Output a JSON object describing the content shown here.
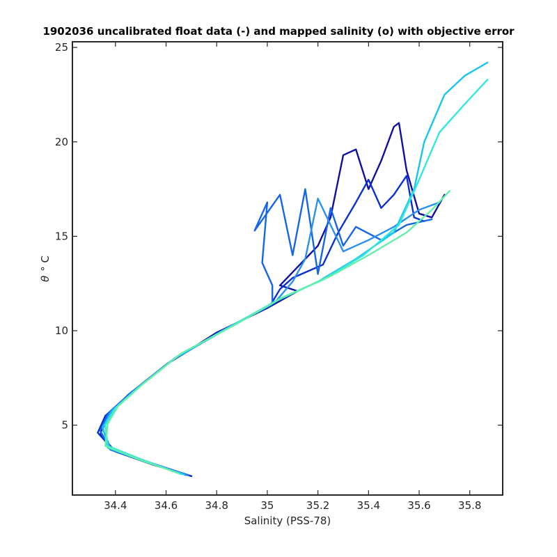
{
  "chart_data": {
    "type": "line",
    "title": "1902036 uncalibrated float data (-) and mapped salinity (o) with objective error",
    "xlabel": "Salinity (PSS-78)",
    "ylabel_theta": "θ",
    "ylabel_unit": "° C",
    "xlim": [
      34.23,
      35.93
    ],
    "ylim": [
      1.3,
      25.3
    ],
    "x_ticks": [
      {
        "value": 34.4,
        "label": "34.4"
      },
      {
        "value": 34.6,
        "label": "34.6"
      },
      {
        "value": 34.8,
        "label": "34.8"
      },
      {
        "value": 35.0,
        "label": "35"
      },
      {
        "value": 35.2,
        "label": "35.2"
      },
      {
        "value": 35.4,
        "label": "35.4"
      },
      {
        "value": 35.6,
        "label": "35.6"
      },
      {
        "value": 35.8,
        "label": "35.8"
      }
    ],
    "y_ticks": [
      {
        "value": 5,
        "label": "5"
      },
      {
        "value": 10,
        "label": "10"
      },
      {
        "value": 15,
        "label": "15"
      },
      {
        "value": 20,
        "label": "20"
      },
      {
        "value": 25,
        "label": "25"
      }
    ],
    "grid": false,
    "legend": "none",
    "series": [
      {
        "color": "#1010a0",
        "points": [
          [
            34.7,
            2.3
          ],
          [
            34.55,
            2.9
          ],
          [
            34.4,
            3.6
          ],
          [
            34.34,
            4.5
          ],
          [
            34.36,
            5.4
          ],
          [
            34.45,
            6.6
          ],
          [
            34.6,
            8.2
          ],
          [
            34.8,
            9.9
          ],
          [
            35.0,
            11.2
          ],
          [
            35.12,
            12.1
          ],
          [
            35.05,
            12.4
          ],
          [
            35.1,
            13.1
          ],
          [
            35.2,
            14.5
          ],
          [
            35.25,
            16.0
          ],
          [
            35.3,
            19.3
          ],
          [
            35.35,
            19.6
          ],
          [
            35.4,
            17.5
          ],
          [
            35.45,
            19.0
          ],
          [
            35.5,
            20.8
          ],
          [
            35.52,
            21.0
          ],
          [
            35.55,
            18.5
          ],
          [
            35.6,
            16.2
          ],
          [
            35.65,
            16.0
          ],
          [
            35.7,
            17.2
          ]
        ]
      },
      {
        "color": "#0b2fd0",
        "points": [
          [
            34.7,
            2.3
          ],
          [
            34.54,
            3.0
          ],
          [
            34.39,
            3.7
          ],
          [
            34.33,
            4.6
          ],
          [
            34.36,
            5.5
          ],
          [
            34.46,
            6.7
          ],
          [
            34.61,
            8.3
          ],
          [
            34.82,
            10.0
          ],
          [
            35.01,
            11.3
          ],
          [
            35.05,
            12.2
          ],
          [
            35.1,
            12.8
          ],
          [
            35.22,
            13.5
          ],
          [
            35.28,
            15.2
          ],
          [
            35.35,
            16.8
          ],
          [
            35.4,
            18.0
          ],
          [
            35.45,
            16.5
          ],
          [
            35.5,
            17.2
          ],
          [
            35.55,
            18.2
          ],
          [
            35.58,
            16.0
          ],
          [
            35.62,
            15.8
          ]
        ]
      },
      {
        "color": "#1565e8",
        "points": [
          [
            34.69,
            2.35
          ],
          [
            34.53,
            3.0
          ],
          [
            34.38,
            3.7
          ],
          [
            34.34,
            4.7
          ],
          [
            34.37,
            5.6
          ],
          [
            34.47,
            6.8
          ],
          [
            34.62,
            8.4
          ],
          [
            34.83,
            10.05
          ],
          [
            35.02,
            11.4
          ],
          [
            35.02,
            12.4
          ],
          [
            34.98,
            13.6
          ],
          [
            35.0,
            16.8
          ],
          [
            34.95,
            15.3
          ],
          [
            35.05,
            17.2
          ],
          [
            35.1,
            14.0
          ],
          [
            35.15,
            17.5
          ],
          [
            35.2,
            13.0
          ],
          [
            35.25,
            16.5
          ],
          [
            35.3,
            14.5
          ],
          [
            35.35,
            15.5
          ],
          [
            35.45,
            14.8
          ],
          [
            35.55,
            15.6
          ],
          [
            35.65,
            15.9
          ]
        ]
      },
      {
        "color": "#2a90f0",
        "points": [
          [
            34.68,
            2.35
          ],
          [
            34.52,
            3.1
          ],
          [
            34.38,
            3.8
          ],
          [
            34.35,
            4.8
          ],
          [
            34.38,
            5.7
          ],
          [
            34.48,
            6.9
          ],
          [
            34.63,
            8.5
          ],
          [
            34.84,
            10.1
          ],
          [
            35.03,
            11.5
          ],
          [
            35.1,
            12.6
          ],
          [
            35.15,
            13.8
          ],
          [
            35.2,
            17.0
          ],
          [
            35.3,
            14.2
          ],
          [
            35.4,
            14.8
          ],
          [
            35.5,
            15.5
          ],
          [
            35.6,
            16.4
          ],
          [
            35.68,
            16.8
          ]
        ]
      },
      {
        "color": "#19c4f0",
        "points": [
          [
            34.67,
            2.4
          ],
          [
            34.51,
            3.1
          ],
          [
            34.37,
            3.8
          ],
          [
            34.35,
            4.9
          ],
          [
            34.39,
            5.8
          ],
          [
            34.49,
            7.0
          ],
          [
            34.64,
            8.6
          ],
          [
            34.85,
            10.2
          ],
          [
            35.04,
            11.6
          ],
          [
            35.2,
            12.6
          ],
          [
            35.35,
            13.8
          ],
          [
            35.5,
            15.2
          ],
          [
            35.58,
            17.5
          ],
          [
            35.62,
            20.0
          ],
          [
            35.7,
            22.5
          ],
          [
            35.78,
            23.5
          ],
          [
            35.87,
            24.2
          ]
        ]
      },
      {
        "color": "#30e8e0",
        "points": [
          [
            34.66,
            2.4
          ],
          [
            34.5,
            3.2
          ],
          [
            34.37,
            3.9
          ],
          [
            34.36,
            5.0
          ],
          [
            34.4,
            5.9
          ],
          [
            34.5,
            7.1
          ],
          [
            34.65,
            8.7
          ],
          [
            34.86,
            10.25
          ],
          [
            35.05,
            11.7
          ],
          [
            35.22,
            12.7
          ],
          [
            35.38,
            14.0
          ],
          [
            35.52,
            15.6
          ],
          [
            35.6,
            18.0
          ],
          [
            35.68,
            20.5
          ],
          [
            35.78,
            22.0
          ],
          [
            35.87,
            23.3
          ]
        ]
      },
      {
        "color": "#60f0a8",
        "points": [
          [
            34.65,
            2.45
          ],
          [
            34.49,
            3.2
          ],
          [
            34.36,
            3.9
          ],
          [
            34.37,
            5.1
          ],
          [
            34.41,
            6.0
          ],
          [
            34.51,
            7.2
          ],
          [
            34.66,
            8.8
          ],
          [
            34.87,
            10.3
          ],
          [
            35.06,
            11.75
          ],
          [
            35.25,
            12.9
          ],
          [
            35.4,
            14.0
          ],
          [
            35.55,
            15.2
          ],
          [
            35.65,
            16.4
          ],
          [
            35.72,
            17.4
          ]
        ]
      }
    ]
  }
}
